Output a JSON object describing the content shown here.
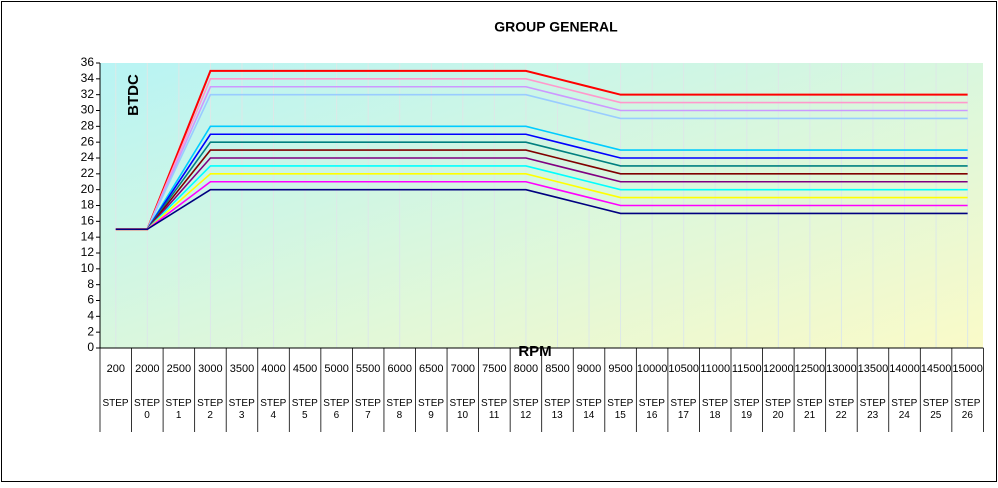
{
  "chart_data": {
    "type": "line",
    "title": "GROUP GENERAL",
    "x_label": "RPM",
    "y_label": "BTDC",
    "categories": [
      "200",
      "2000",
      "2500",
      "3000",
      "3500",
      "4000",
      "4500",
      "5000",
      "5500",
      "6000",
      "6500",
      "7000",
      "7500",
      "8000",
      "8500",
      "9000",
      "9500",
      "10000",
      "10500",
      "11000",
      "11500",
      "12000",
      "12500",
      "13000",
      "13500",
      "14000",
      "14500",
      "15000"
    ],
    "step_labels": [
      "STEP",
      "STEP 0",
      "STEP 1",
      "STEP 2",
      "STEP 3",
      "STEP 4",
      "STEP 5",
      "STEP 6",
      "STEP 7",
      "STEP 8",
      "STEP 9",
      "STEP 10",
      "STEP 11",
      "STEP 12",
      "STEP 13",
      "STEP 14",
      "STEP 15",
      "STEP 16",
      "STEP 17",
      "STEP 18",
      "STEP 19",
      "STEP 20",
      "STEP 21",
      "STEP 22",
      "STEP 23",
      "STEP 24",
      "STEP 25",
      "STEP 26"
    ],
    "series": [
      {
        "color": "#ff0000",
        "values": [
          15,
          15,
          25,
          35,
          35,
          35,
          35,
          35,
          35,
          35,
          35,
          35,
          35,
          35,
          34,
          33,
          32,
          32,
          32,
          32,
          32,
          32,
          32,
          32,
          32,
          32,
          32,
          32
        ]
      },
      {
        "color": "#ff99cc",
        "values": [
          15,
          15,
          24.5,
          34,
          34,
          34,
          34,
          34,
          34,
          34,
          34,
          34,
          34,
          34,
          33,
          32,
          31,
          31,
          31,
          31,
          31,
          31,
          31,
          31,
          31,
          31,
          31,
          31
        ]
      },
      {
        "color": "#cc99ff",
        "values": [
          15,
          15,
          24,
          33,
          33,
          33,
          33,
          33,
          33,
          33,
          33,
          33,
          33,
          33,
          32,
          31,
          30,
          30,
          30,
          30,
          30,
          30,
          30,
          30,
          30,
          30,
          30,
          30
        ]
      },
      {
        "color": "#99ccff",
        "values": [
          15,
          15,
          23.5,
          32,
          32,
          32,
          32,
          32,
          32,
          32,
          32,
          32,
          32,
          32,
          31,
          30,
          29,
          29,
          29,
          29,
          29,
          29,
          29,
          29,
          29,
          29,
          29,
          29
        ]
      },
      {
        "color": "#00ccff",
        "values": [
          15,
          15,
          21.5,
          28,
          28,
          28,
          28,
          28,
          28,
          28,
          28,
          28,
          28,
          28,
          27,
          26,
          25,
          25,
          25,
          25,
          25,
          25,
          25,
          25,
          25,
          25,
          25,
          25
        ]
      },
      {
        "color": "#0000ff",
        "values": [
          15,
          15,
          21,
          27,
          27,
          27,
          27,
          27,
          27,
          27,
          27,
          27,
          27,
          27,
          26,
          25,
          24,
          24,
          24,
          24,
          24,
          24,
          24,
          24,
          24,
          24,
          24,
          24
        ]
      },
      {
        "color": "#008080",
        "values": [
          15,
          15,
          20.5,
          26,
          26,
          26,
          26,
          26,
          26,
          26,
          26,
          26,
          26,
          26,
          25,
          24,
          23,
          23,
          23,
          23,
          23,
          23,
          23,
          23,
          23,
          23,
          23,
          23
        ]
      },
      {
        "color": "#800000",
        "values": [
          15,
          15,
          20,
          25,
          25,
          25,
          25,
          25,
          25,
          25,
          25,
          25,
          25,
          25,
          24,
          23,
          22,
          22,
          22,
          22,
          22,
          22,
          22,
          22,
          22,
          22,
          22,
          22
        ]
      },
      {
        "color": "#800080",
        "values": [
          15,
          15,
          19.5,
          24,
          24,
          24,
          24,
          24,
          24,
          24,
          24,
          24,
          24,
          24,
          23,
          22,
          21,
          21,
          21,
          21,
          21,
          21,
          21,
          21,
          21,
          21,
          21,
          21
        ]
      },
      {
        "color": "#00ffff",
        "values": [
          15,
          15,
          19,
          23,
          23,
          23,
          23,
          23,
          23,
          23,
          23,
          23,
          23,
          23,
          22,
          21,
          20,
          20,
          20,
          20,
          20,
          20,
          20,
          20,
          20,
          20,
          20,
          20
        ]
      },
      {
        "color": "#ffff00",
        "values": [
          15,
          15,
          18.5,
          22,
          22,
          22,
          22,
          22,
          22,
          22,
          22,
          22,
          22,
          22,
          21,
          20,
          19,
          19,
          19,
          19,
          19,
          19,
          19,
          19,
          19,
          19,
          19,
          19
        ]
      },
      {
        "color": "#ff00ff",
        "values": [
          15,
          15,
          18,
          21,
          21,
          21,
          21,
          21,
          21,
          21,
          21,
          21,
          21,
          21,
          20,
          19,
          18,
          18,
          18,
          18,
          18,
          18,
          18,
          18,
          18,
          18,
          18,
          18
        ]
      },
      {
        "color": "#000080",
        "values": [
          15,
          15,
          17.5,
          20,
          20,
          20,
          20,
          20,
          20,
          20,
          20,
          20,
          20,
          20,
          19,
          18,
          17,
          17,
          17,
          17,
          17,
          17,
          17,
          17,
          17,
          17,
          17,
          17
        ]
      }
    ],
    "ylim": [
      0,
      36
    ],
    "yticks": [
      0,
      2,
      4,
      6,
      8,
      10,
      12,
      14,
      16,
      18,
      20,
      22,
      24,
      26,
      28,
      30,
      32,
      34,
      36
    ]
  }
}
